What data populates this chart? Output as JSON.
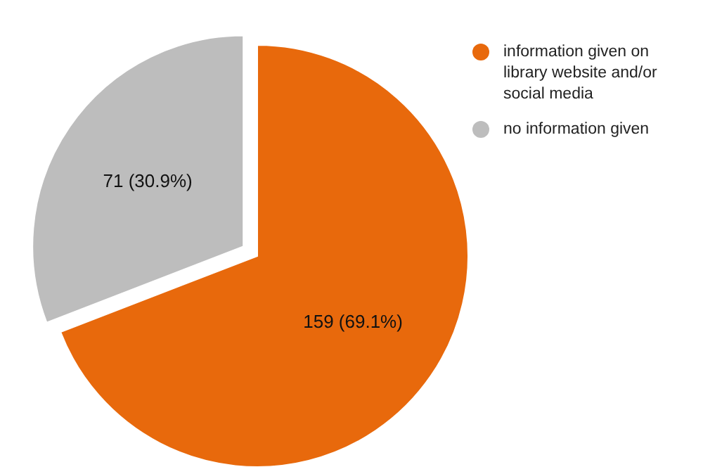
{
  "chart_data": {
    "type": "pie",
    "categories": [
      "information given on library website and/or social media",
      "no information given"
    ],
    "values": [
      159,
      71
    ],
    "colors": [
      "#e8690c",
      "#bdbdbd"
    ],
    "value_labels": [
      "159 (69.1%)",
      "71 (30.9%)"
    ],
    "legend": "right"
  }
}
